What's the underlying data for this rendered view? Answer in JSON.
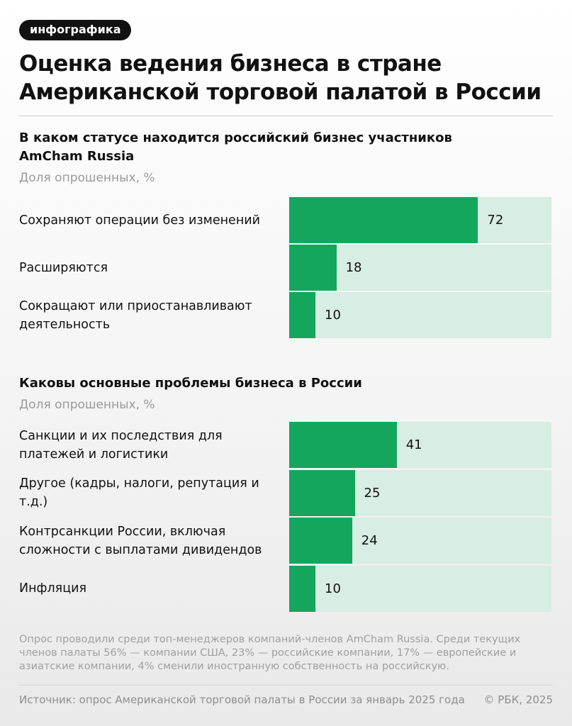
{
  "badge": "инфографика",
  "title": "Оценка ведения бизнеса в стране Американской торговой палатой в России",
  "chart_data": [
    {
      "type": "bar",
      "orientation": "horizontal",
      "title": "В каком статусе находится российский бизнес участников AmCham Russia",
      "subtitle": "Доля опрошенных, %",
      "categories": [
        "Сохраняют операции без изменений",
        "Расширяются",
        "Сокращают или приостанавливают деятельность"
      ],
      "values": [
        72,
        18,
        10
      ],
      "xlim": [
        0,
        100
      ],
      "color": "#13a65c",
      "track_color": "#d8ede3"
    },
    {
      "type": "bar",
      "orientation": "horizontal",
      "title": "Каковы основные проблемы бизнеса в России",
      "subtitle": "Доля опрошенных, %",
      "categories": [
        "Санкции и их последствия для платежей и логистики",
        "Другое (кадры, налоги, репутация и т.д.)",
        "Контрсанкции России, включая сложности с выплатами дивидендов",
        "Инфляция"
      ],
      "values": [
        41,
        25,
        24,
        10
      ],
      "xlim": [
        0,
        100
      ],
      "color": "#13a65c",
      "track_color": "#d8ede3"
    }
  ],
  "note": "Опрос проводили среди топ-менеджеров компаний-членов AmCham Russia. Среди текущих членов палаты 56% — компании США, 23% — российские компании, 17% — европейские и азиатские компании, 4% сменили иностранную собственность на российскую.",
  "source": "Источник: опрос Американской торговой палаты в России за январь 2025 года",
  "copyright": "© РБК, 2025"
}
